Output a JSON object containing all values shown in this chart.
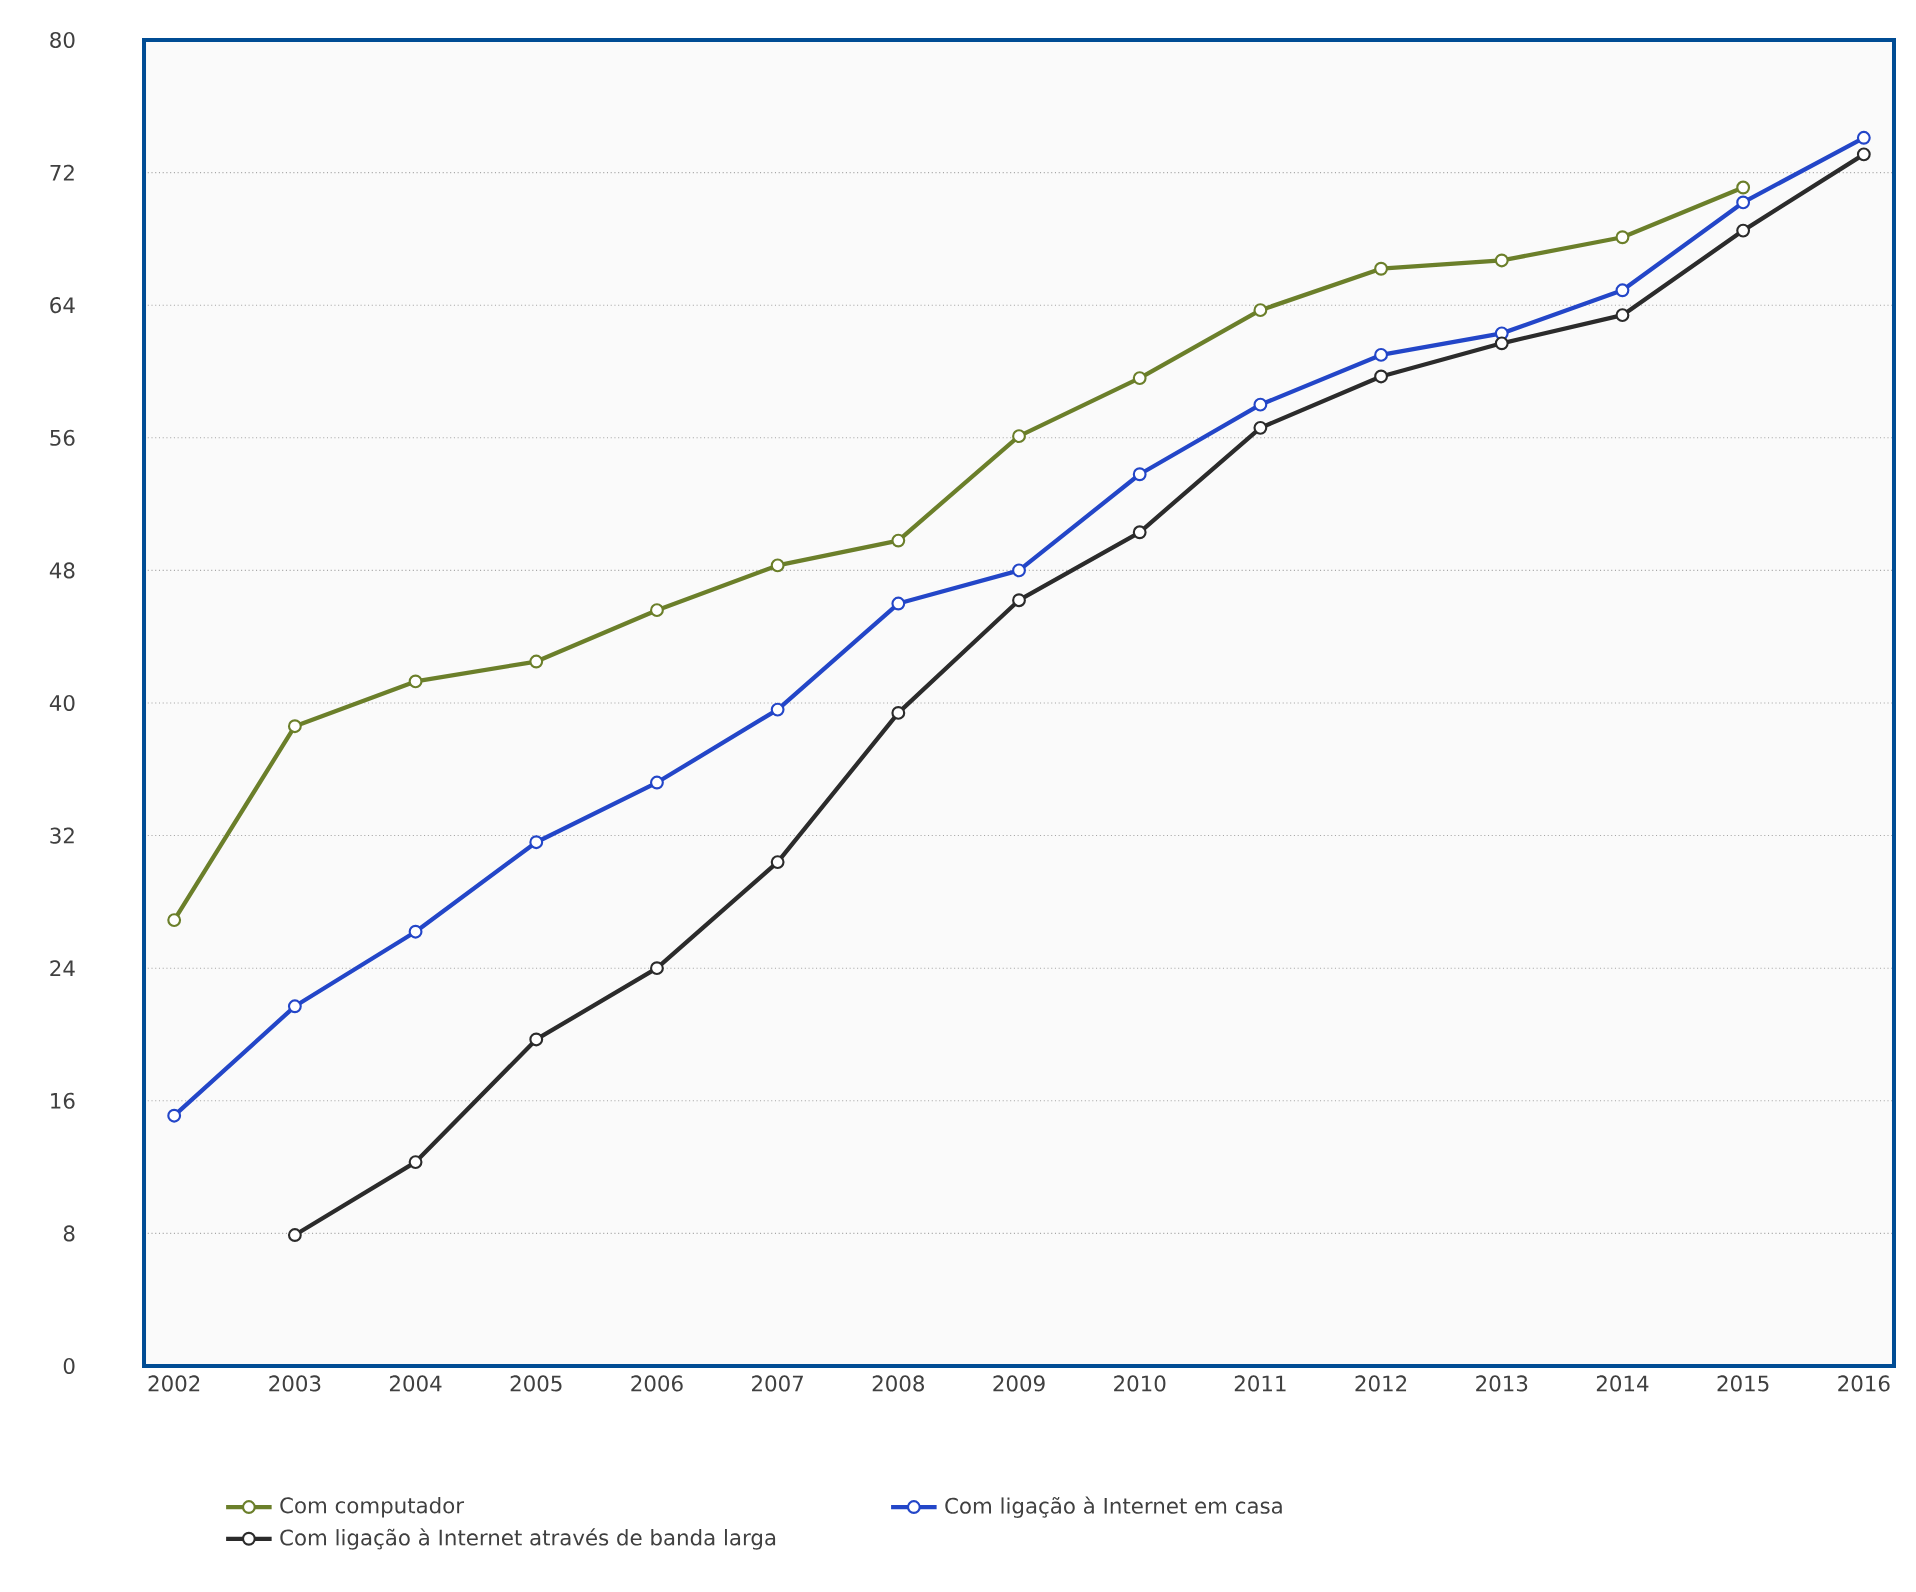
{
  "chart_data": {
    "type": "line",
    "categories": [
      "2002",
      "2003",
      "2004",
      "2005",
      "2006",
      "2007",
      "2008",
      "2009",
      "2010",
      "2011",
      "2012",
      "2013",
      "2014",
      "2015",
      "2016"
    ],
    "series": [
      {
        "name": "Com computador",
        "color": "#6b7f2a",
        "values": [
          26.9,
          38.6,
          41.3,
          42.5,
          45.6,
          48.3,
          49.8,
          56.1,
          59.6,
          63.7,
          66.2,
          66.7,
          68.1,
          71.1,
          null
        ]
      },
      {
        "name": "Com ligação à Internet em casa",
        "color": "#2346c8",
        "values": [
          15.1,
          21.7,
          26.2,
          31.6,
          35.2,
          39.6,
          46.0,
          48.0,
          53.8,
          58.0,
          61.0,
          62.3,
          64.9,
          70.2,
          74.1
        ]
      },
      {
        "name": "Com ligação à Internet através de banda larga",
        "color": "#2b2b2b",
        "values": [
          null,
          7.9,
          12.3,
          19.7,
          24.0,
          30.4,
          39.4,
          46.2,
          50.3,
          56.6,
          59.7,
          61.7,
          63.4,
          68.5,
          73.1
        ]
      }
    ],
    "ylim": [
      0,
      80
    ],
    "yticks": [
      0,
      8,
      16,
      24,
      32,
      40,
      48,
      56,
      64,
      72,
      80
    ],
    "grid": "y",
    "legend": "bottom",
    "marker": "circle",
    "line_style": "solid"
  }
}
